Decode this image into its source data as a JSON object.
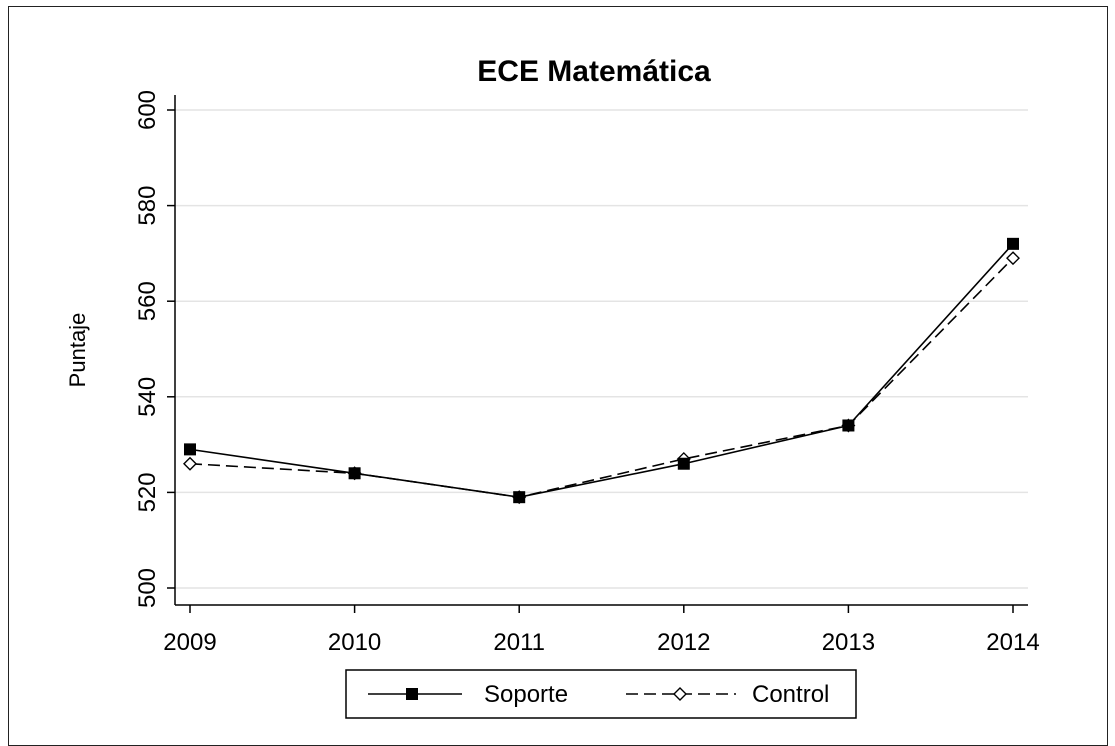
{
  "chart_data": {
    "type": "line",
    "title": "ECE Matemática",
    "xlabel": "",
    "ylabel": "Puntaje",
    "x": [
      "2009",
      "2010",
      "2011",
      "2012",
      "2013",
      "2014"
    ],
    "ylim": [
      500,
      600
    ],
    "yticks": [
      "500",
      "520",
      "540",
      "560",
      "580",
      "600"
    ],
    "grid": true,
    "legend_position": "bottom",
    "series": [
      {
        "name": "Soporte",
        "values": [
          529,
          524,
          519,
          526,
          534,
          572
        ],
        "color": "#000000",
        "line": "solid",
        "marker": "filled-square"
      },
      {
        "name": "Control",
        "values": [
          526,
          524,
          519,
          527,
          534,
          569
        ],
        "color": "#000000",
        "line": "dashed",
        "marker": "hollow-diamond"
      }
    ]
  }
}
